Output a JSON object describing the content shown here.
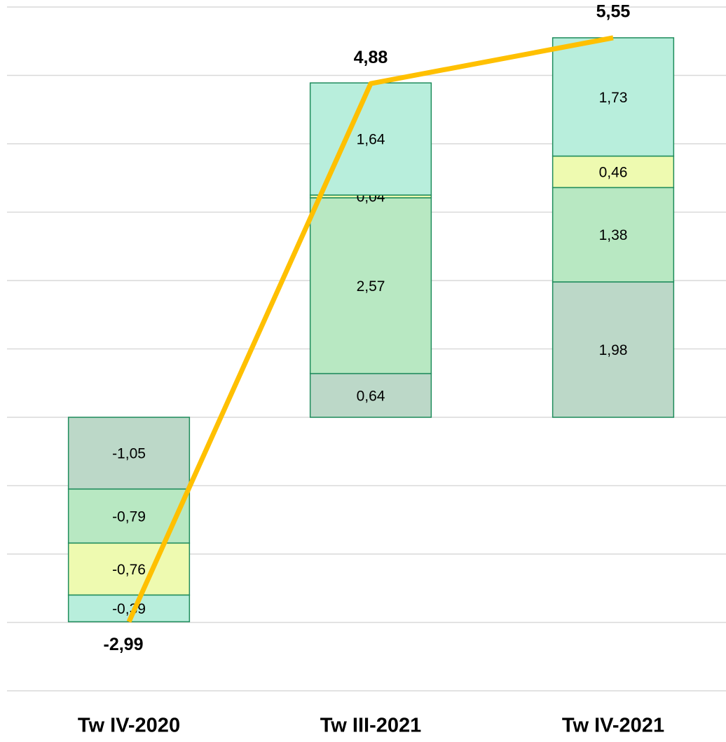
{
  "chart_data": {
    "type": "bar",
    "stacked": true,
    "categories": [
      "Tw IV-2020",
      "Tw III-2021",
      "Tw IV-2021"
    ],
    "series": [
      {
        "color": "#bcd8c8",
        "values": [
          -1.05,
          0.64,
          1.98
        ],
        "value_labels": [
          "-1,05",
          "0,64",
          "1,98"
        ]
      },
      {
        "color": "#b8e8c2",
        "values": [
          -0.79,
          2.57,
          1.38
        ],
        "value_labels": [
          "-0,79",
          "2,57",
          "1,38"
        ]
      },
      {
        "color": "#eefab0",
        "values": [
          -0.76,
          0.04,
          0.46
        ],
        "value_labels": [
          "-0,76",
          "0,04",
          "0,46"
        ]
      },
      {
        "color": "#b8eedc",
        "values": [
          -0.39,
          1.64,
          1.73
        ],
        "value_labels": [
          "-0,39",
          "1,64",
          "1,73"
        ]
      }
    ],
    "line": {
      "color": "#ffc000",
      "values": [
        -2.99,
        4.88,
        5.55
      ],
      "value_labels": [
        "-2,99",
        "4,88",
        "5,55"
      ]
    },
    "bar_border": "#1f8c5c",
    "ylim": [
      -4,
      6
    ],
    "yticks": [
      -4,
      -3,
      -2,
      -1,
      0,
      1,
      2,
      3,
      4,
      5,
      6
    ],
    "grid": true
  }
}
